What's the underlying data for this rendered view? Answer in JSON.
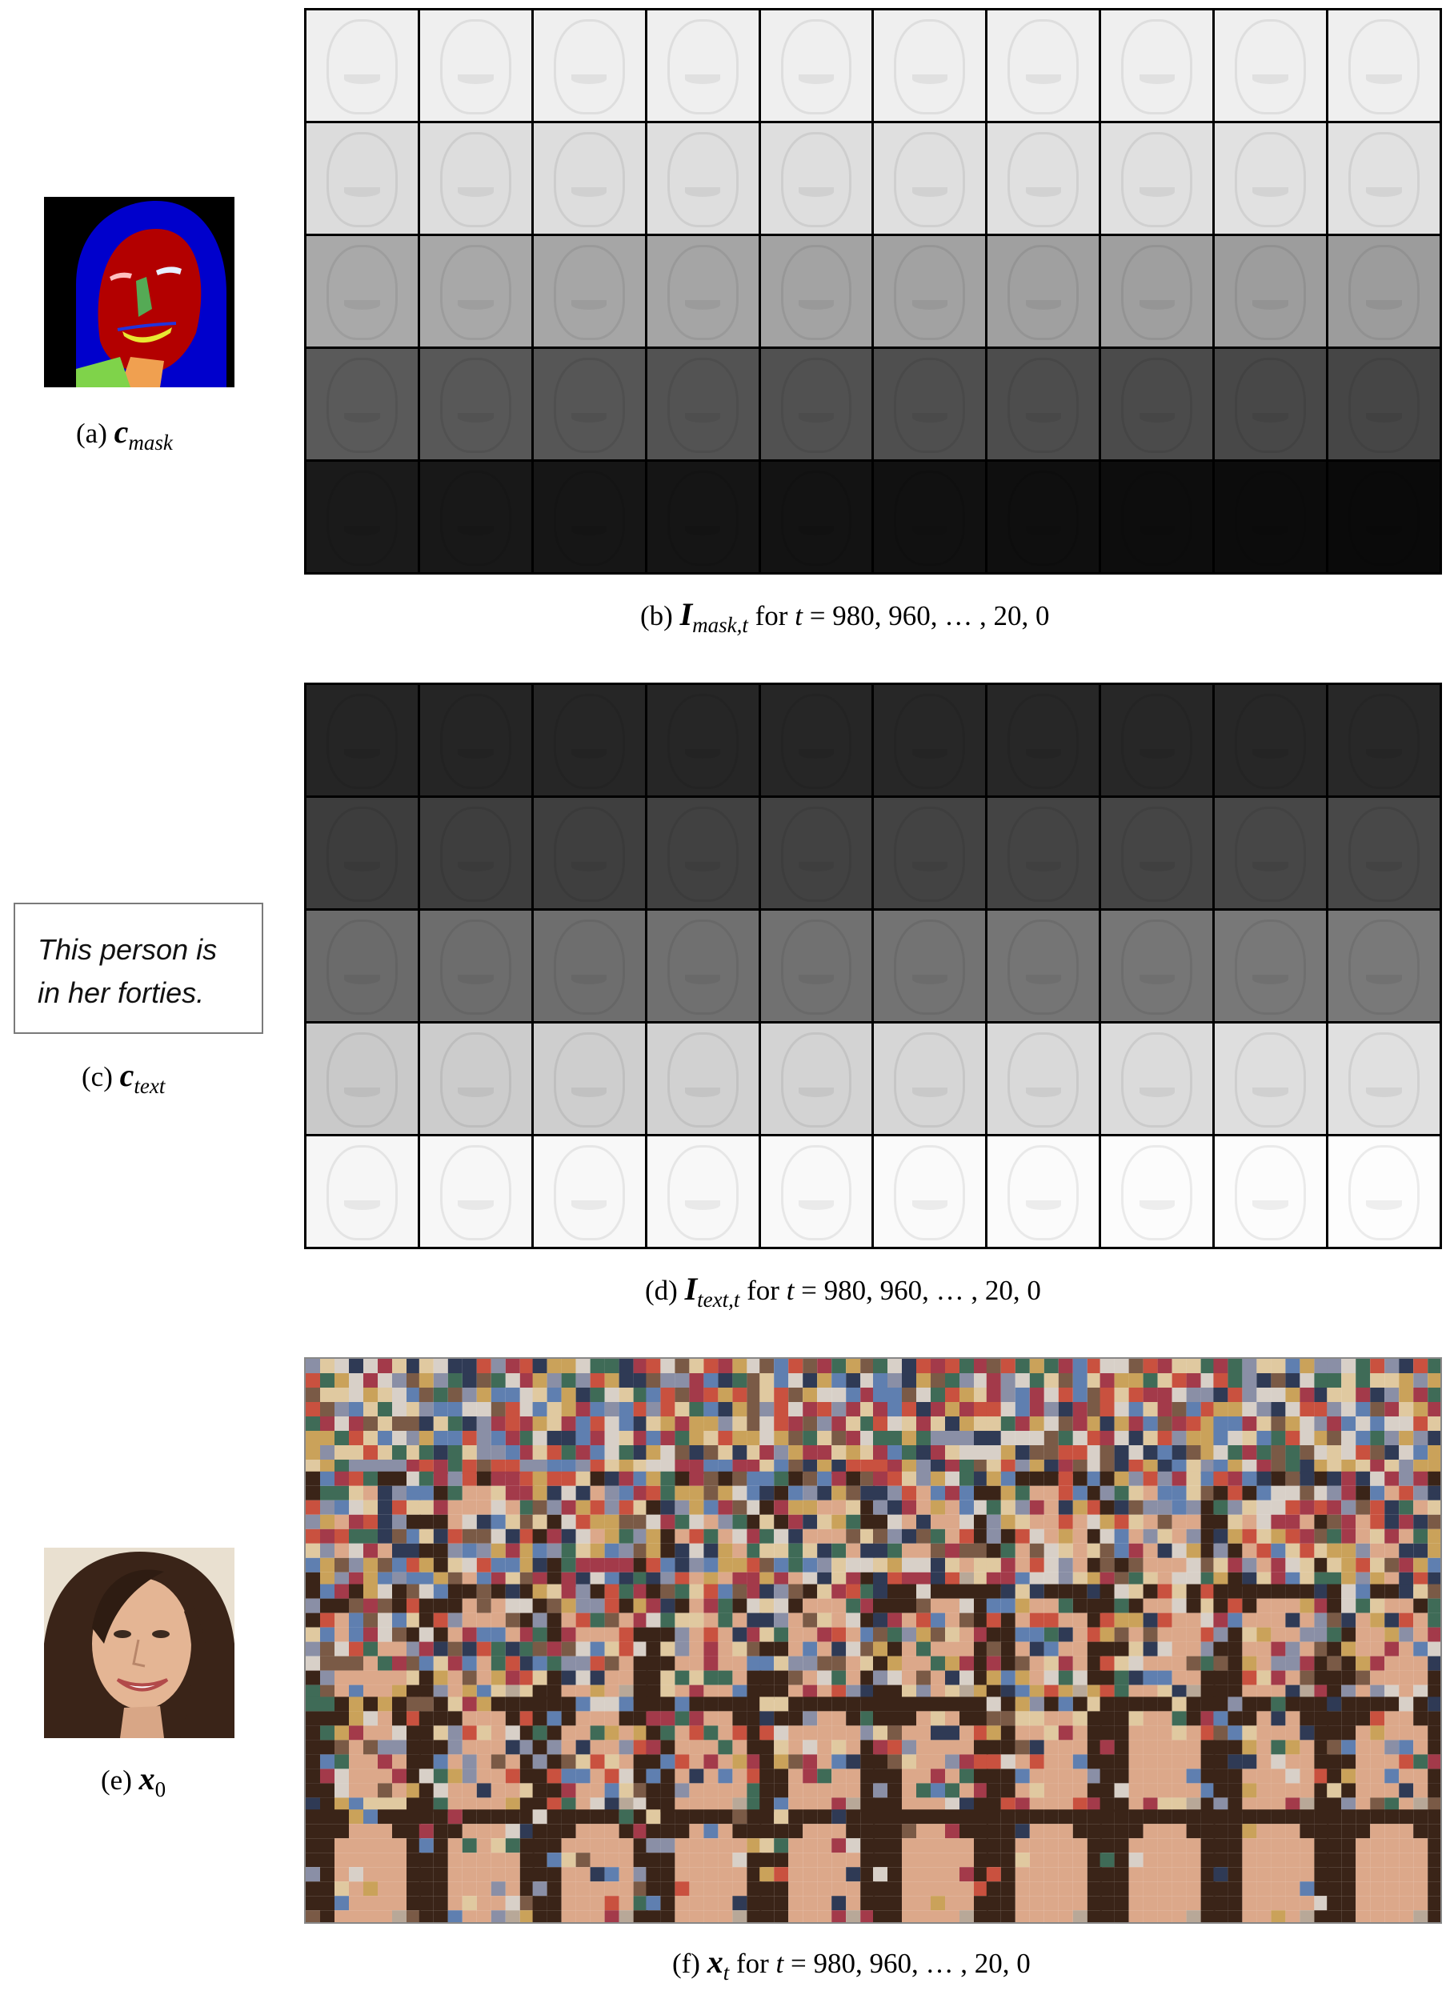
{
  "panels": {
    "a": {
      "prefix": "(a)",
      "symbol": "c",
      "subscript": "mask"
    },
    "b": {
      "prefix": "(b)",
      "symbol": "I",
      "subscript": "mask,t",
      "suffix_for": "for",
      "var": "t",
      "equals": "=",
      "values": "980, 960, … , 20, 0"
    },
    "c": {
      "prefix": "(c)",
      "symbol": "c",
      "subscript": "text",
      "text_prompt_line1": "This person is",
      "text_prompt_line2": "in her forties."
    },
    "d": {
      "prefix": "(d)",
      "symbol": "I",
      "subscript": "text,t",
      "suffix_for": "for",
      "var": "t",
      "equals": "=",
      "values": "980, 960, … , 20, 0"
    },
    "e": {
      "prefix": "(e)",
      "symbol": "x",
      "subscript": "0"
    },
    "f": {
      "prefix": "(f)",
      "symbol": "x",
      "subscript": "t",
      "suffix_for": "for",
      "var": "t",
      "equals": "=",
      "values": "980, 960, … , 20, 0"
    }
  },
  "colors": {
    "mask_hair": "#0000cc",
    "mask_skin": "#b30000",
    "mask_nose": "#55aa55",
    "mask_neck": "#7fd34a",
    "mask_cloth": "#f0a050",
    "mask_teeth": "#e8e832",
    "mask_brow": "#e6f0ff",
    "mask_eye": "#80ffff"
  },
  "grid_b_rows": [
    "#efefef",
    "#dcdcdc",
    "#a9a9a9",
    "#5a5a5a",
    "#1a1a1a"
  ],
  "grid_d_rows": [
    "#252525",
    "#3d3d3d",
    "#6b6b6b",
    "#c9c9c9",
    "#f6f6f6"
  ]
}
